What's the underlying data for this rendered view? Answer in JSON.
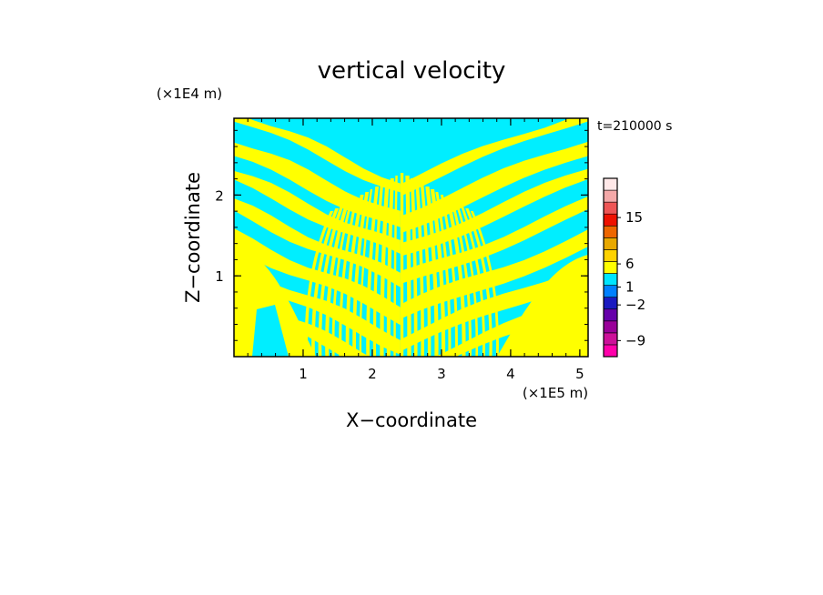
{
  "chart_data": {
    "type": "heatmap",
    "title": "vertical velocity",
    "time_label": "t=210000 s",
    "xlabel": "X−coordinate",
    "ylabel": "Z−coordinate",
    "x_unit": "(×1E5 m)",
    "y_unit": "(×1E4 m)",
    "xlim": [
      0,
      5.12
    ],
    "ylim": [
      0,
      2.95
    ],
    "x_ticks": [
      {
        "value": 1,
        "label": "1"
      },
      {
        "value": 2,
        "label": "2"
      },
      {
        "value": 3,
        "label": "3"
      },
      {
        "value": 4,
        "label": "4"
      },
      {
        "value": 5,
        "label": "5"
      }
    ],
    "y_ticks": [
      {
        "value": 1,
        "label": "1"
      },
      {
        "value": 2,
        "label": "2"
      }
    ],
    "colorbar": {
      "colors": [
        "#ff00aa",
        "#cc1199",
        "#990099",
        "#6600aa",
        "#1a1ac0",
        "#0080ff",
        "#00e5ff",
        "#ffff00",
        "#ffd200",
        "#e8a800",
        "#ee6600",
        "#ee1100",
        "#ee5555",
        "#f4a8a8",
        "#ffe8e8"
      ],
      "labels": [
        {
          "text": "−9",
          "level": 0.09
        },
        {
          "text": "−2",
          "level": 0.29
        },
        {
          "text": "1",
          "level": 0.39
        },
        {
          "text": "6",
          "level": 0.52
        },
        {
          "text": "15",
          "level": 0.78
        }
      ]
    },
    "field_colors": {
      "positive": "#ffff00",
      "negative": "#00eeff"
    }
  }
}
